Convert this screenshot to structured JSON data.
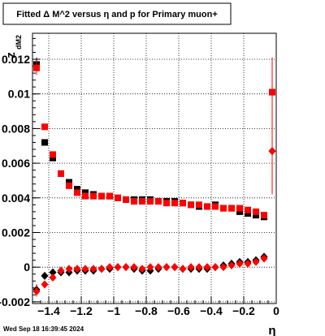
{
  "chart_data": {
    "type": "scatter",
    "title": "Fitted Δ M^2 versus η and p for Primary muon+",
    "xlabel": "η",
    "ylabel": "z",
    "ylabel_subscript": "dM2",
    "xlim": [
      -1.5,
      0.0
    ],
    "ylim": [
      -0.0021,
      0.0135
    ],
    "x_ticks": [
      -1.4,
      -1.2,
      -1.0,
      -0.8,
      -0.6,
      -0.4,
      -0.2,
      0
    ],
    "x_tick_labels": [
      "−1.4",
      "−1.2",
      "−1",
      "−0.8",
      "−0.6",
      "−0.4",
      "−0.2",
      "0"
    ],
    "y_ticks": [
      -0.002,
      0,
      0.002,
      0.004,
      0.006,
      0.008,
      0.01,
      0.012
    ],
    "y_tick_labels": [
      "-0.002",
      "0",
      "0.002",
      "0.004",
      "0.006",
      "0.008",
      "0.01",
      "0.012"
    ],
    "grid": true,
    "series": [
      {
        "marker": "square",
        "color": "#000000",
        "x": [
          -1.475,
          -1.425,
          -1.375,
          -1.325,
          -1.275,
          -1.225,
          -1.175,
          -1.125,
          -1.075,
          -1.025,
          -0.975,
          -0.925,
          -0.875,
          -0.825,
          -0.775,
          -0.725,
          -0.675,
          -0.625,
          -0.575,
          -0.525,
          -0.475,
          -0.425,
          -0.375,
          -0.325,
          -0.275,
          -0.225,
          -0.175,
          -0.125,
          -0.075,
          -0.025
        ],
        "y": [
          0.0117,
          0.0072,
          0.0063,
          0.0054,
          0.0049,
          0.0045,
          0.0043,
          0.0042,
          0.0041,
          0.0041,
          0.004,
          0.0039,
          0.0039,
          0.0039,
          0.0039,
          0.0038,
          0.0038,
          0.0038,
          0.0037,
          0.0036,
          0.0035,
          0.0035,
          0.0036,
          0.0034,
          0.0034,
          0.0032,
          0.0031,
          0.003,
          0.0029,
          0.0101
        ],
        "y_err": [
          0.0004,
          0.0001,
          0.0001,
          0.0001,
          0.0001,
          0.0001,
          0.0001,
          0.0001,
          0.0001,
          0.0001,
          0.0001,
          0.0001,
          0.0001,
          0.0001,
          0.0001,
          0.0001,
          0.0001,
          0.0001,
          0.0001,
          0.0001,
          0.0001,
          0.0001,
          0.0001,
          0.0001,
          0.0001,
          0.0001,
          0.0001,
          0.0001,
          0.0001,
          0.002
        ]
      },
      {
        "marker": "square",
        "color": "#ff0000",
        "x": [
          -1.475,
          -1.425,
          -1.375,
          -1.325,
          -1.275,
          -1.225,
          -1.175,
          -1.125,
          -1.075,
          -1.025,
          -0.975,
          -0.925,
          -0.875,
          -0.825,
          -0.775,
          -0.725,
          -0.675,
          -0.625,
          -0.575,
          -0.525,
          -0.475,
          -0.425,
          -0.375,
          -0.325,
          -0.275,
          -0.225,
          -0.175,
          -0.125,
          -0.075,
          -0.025
        ],
        "y": [
          0.0115,
          0.0081,
          0.0065,
          0.0054,
          0.0047,
          0.0043,
          0.0041,
          0.0041,
          0.0041,
          0.0041,
          0.004,
          0.0039,
          0.0038,
          0.0038,
          0.0038,
          0.0038,
          0.0037,
          0.0037,
          0.0037,
          0.0036,
          0.0036,
          0.0035,
          0.0035,
          0.0034,
          0.0034,
          0.0034,
          0.0033,
          0.0032,
          0.003,
          0.0101
        ],
        "y_err": [
          0.0004,
          0.0001,
          0.0001,
          0.0001,
          0.0001,
          0.0001,
          0.0001,
          0.0001,
          0.0001,
          0.0001,
          0.0001,
          0.0001,
          0.0001,
          0.0001,
          0.0001,
          0.0001,
          0.0001,
          0.0001,
          0.0001,
          0.0001,
          0.0001,
          0.0001,
          0.0001,
          0.0001,
          0.0001,
          0.0001,
          0.0001,
          0.0001,
          0.0001,
          0.002
        ]
      },
      {
        "marker": "diamond",
        "color": "#000000",
        "x": [
          -1.475,
          -1.425,
          -1.375,
          -1.325,
          -1.275,
          -1.225,
          -1.175,
          -1.125,
          -1.075,
          -1.025,
          -0.975,
          -0.925,
          -0.875,
          -0.825,
          -0.775,
          -0.725,
          -0.675,
          -0.625,
          -0.575,
          -0.525,
          -0.475,
          -0.425,
          -0.375,
          -0.325,
          -0.275,
          -0.225,
          -0.175,
          -0.125,
          -0.075,
          -0.025
        ],
        "y": [
          -0.0013,
          -0.0005,
          -0.0003,
          -0.0003,
          -0.0003,
          -0.0002,
          -0.0002,
          -0.0002,
          -0.0001,
          -0.0001,
          0.0,
          0.0,
          -0.0001,
          -0.0002,
          -0.0002,
          -0.0001,
          0.0,
          0.0,
          -0.0001,
          -0.0001,
          -0.0001,
          -0.0001,
          0.0,
          0.0001,
          0.0002,
          0.0003,
          0.0003,
          0.0004,
          0.0006,
          0.0067
        ],
        "y_err": [
          0.0003,
          0.0001,
          0.0001,
          0.0001,
          0.0001,
          0.0001,
          0.0001,
          0.0001,
          0.0001,
          0.0001,
          0.0001,
          0.0001,
          0.0001,
          0.0001,
          0.0001,
          0.0001,
          0.0001,
          0.0001,
          0.0001,
          0.0001,
          0.0001,
          0.0001,
          0.0001,
          0.0001,
          0.0001,
          0.0001,
          0.0001,
          0.0001,
          0.0001,
          0.0025
        ]
      },
      {
        "marker": "diamond",
        "color": "#ff0000",
        "x": [
          -1.475,
          -1.425,
          -1.375,
          -1.325,
          -1.275,
          -1.225,
          -1.175,
          -1.125,
          -1.075,
          -1.025,
          -0.975,
          -0.925,
          -0.875,
          -0.825,
          -0.775,
          -0.725,
          -0.675,
          -0.625,
          -0.575,
          -0.525,
          -0.475,
          -0.425,
          -0.375,
          -0.325,
          -0.275,
          -0.225,
          -0.175,
          -0.125,
          -0.075,
          -0.025
        ],
        "y": [
          -0.0014,
          -0.001,
          -0.0006,
          -0.0002,
          -0.0001,
          -0.0001,
          -0.0001,
          -0.0001,
          -0.0001,
          0.0,
          0.0,
          0.0,
          0.0,
          -0.0001,
          0.0,
          0.0,
          0.0,
          0.0,
          -0.0001,
          0.0,
          0.0,
          0.0,
          0.0,
          0.0,
          0.0001,
          0.0002,
          0.0002,
          0.0003,
          0.0005,
          0.0067
        ],
        "y_err": [
          0.0003,
          0.0001,
          0.0001,
          0.0001,
          0.0001,
          0.0001,
          0.0001,
          0.0001,
          0.0001,
          0.0001,
          0.0001,
          0.0001,
          0.0001,
          0.0001,
          0.0001,
          0.0001,
          0.0001,
          0.0001,
          0.0001,
          0.0001,
          0.0001,
          0.0001,
          0.0001,
          0.0001,
          0.0001,
          0.0001,
          0.0001,
          0.0001,
          0.0001,
          0.0025
        ]
      }
    ],
    "timestamp": "Wed Sep 18 16:39:45 2024"
  }
}
